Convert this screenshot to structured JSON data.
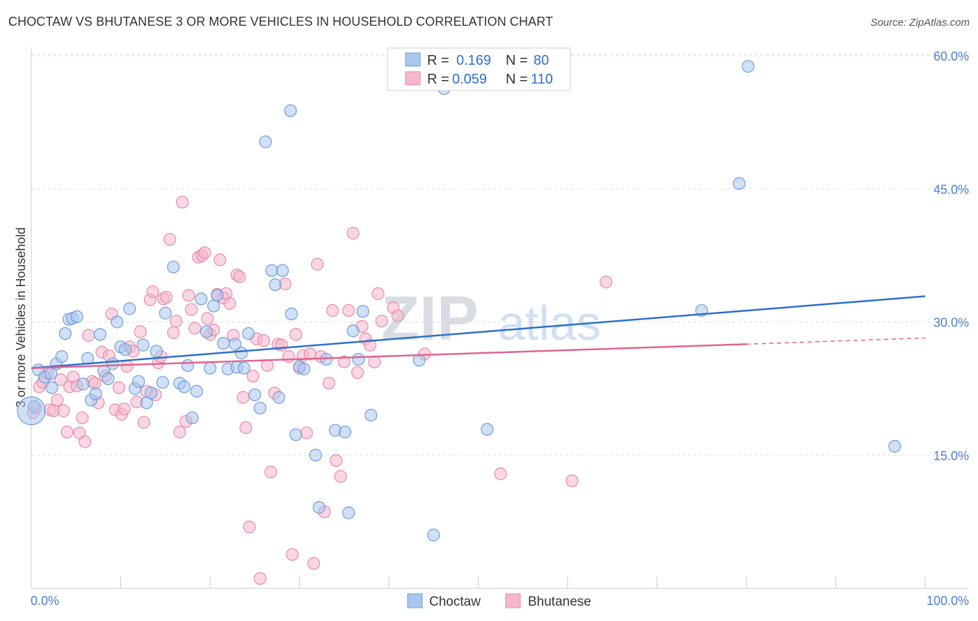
{
  "header": {
    "title": "CHOCTAW VS BHUTANESE 3 OR MORE VEHICLES IN HOUSEHOLD CORRELATION CHART",
    "source": "Source: ZipAtlas.com"
  },
  "watermark": {
    "part1": "ZIP",
    "part2": "atlas"
  },
  "legend": {
    "series": [
      {
        "r_label": "R = ",
        "r_value": "0.169",
        "n_label": "N = ",
        "n_value": "80"
      },
      {
        "r_label": "R = ",
        "r_value": "0.059",
        "n_label": "N = ",
        "n_value": "110"
      }
    ]
  },
  "bottom_legend": {
    "items": [
      "Choctaw",
      "Bhutanese"
    ]
  },
  "colors": {
    "choctaw_fill": "#a9c6ee",
    "choctaw_stroke": "#6f9ddb",
    "choctaw_line": "#2c6fcc",
    "bhutanese_fill": "#f6b7cc",
    "bhutanese_stroke": "#e98aa8",
    "bhutanese_line": "#e0648e",
    "tick_text": "#4a7fd1",
    "grid": "#dddddd"
  },
  "chart_data": {
    "type": "scatter",
    "title": "CHOCTAW VS BHUTANESE 3 OR MORE VEHICLES IN HOUSEHOLD CORRELATION CHART",
    "xlabel": "",
    "ylabel": "3 or more Vehicles in Household",
    "xlim": [
      0,
      100
    ],
    "ylim": [
      0,
      60
    ],
    "x_tick_labels": [
      "0.0%",
      "100.0%"
    ],
    "y_ticks": [
      15,
      30,
      45,
      60
    ],
    "y_tick_labels": [
      "15.0%",
      "30.0%",
      "45.0%",
      "60.0%"
    ],
    "grid": true,
    "legend_position": "top-center",
    "series": [
      {
        "name": "Choctaw",
        "R": 0.169,
        "N": 80,
        "trend": {
          "x": [
            0,
            100
          ],
          "y": [
            24.8,
            32.9
          ],
          "dashed_after": null
        },
        "points": [
          [
            0.3,
            20.5
          ],
          [
            0.8,
            24.6
          ],
          [
            1.5,
            23.8
          ],
          [
            2.2,
            24.2
          ],
          [
            2.3,
            22.6
          ],
          [
            2.8,
            25.3
          ],
          [
            3.4,
            26.1
          ],
          [
            3.8,
            28.7
          ],
          [
            4.2,
            30.3
          ],
          [
            4.6,
            30.4
          ],
          [
            5.1,
            30.6
          ],
          [
            5.8,
            23.0
          ],
          [
            6.3,
            25.9
          ],
          [
            6.7,
            21.2
          ],
          [
            7.2,
            21.9
          ],
          [
            7.7,
            28.6
          ],
          [
            8.1,
            24.5
          ],
          [
            8.6,
            23.6
          ],
          [
            9.1,
            25.3
          ],
          [
            9.6,
            30.0
          ],
          [
            10.0,
            27.2
          ],
          [
            10.5,
            26.9
          ],
          [
            11.0,
            31.5
          ],
          [
            11.6,
            22.5
          ],
          [
            12.0,
            23.3
          ],
          [
            12.5,
            27.4
          ],
          [
            12.9,
            20.9
          ],
          [
            13.4,
            22.0
          ],
          [
            14.0,
            26.7
          ],
          [
            14.7,
            23.2
          ],
          [
            15.0,
            31.0
          ],
          [
            15.9,
            36.2
          ],
          [
            16.6,
            23.1
          ],
          [
            17.1,
            22.7
          ],
          [
            17.5,
            25.1
          ],
          [
            18.0,
            19.2
          ],
          [
            18.5,
            22.2
          ],
          [
            19.0,
            32.6
          ],
          [
            19.6,
            28.9
          ],
          [
            20.0,
            24.8
          ],
          [
            20.4,
            31.8
          ],
          [
            20.8,
            33.0
          ],
          [
            21.5,
            27.6
          ],
          [
            22.0,
            24.7
          ],
          [
            22.8,
            27.5
          ],
          [
            23.0,
            24.9
          ],
          [
            23.5,
            26.5
          ],
          [
            23.8,
            24.8
          ],
          [
            24.3,
            28.7
          ],
          [
            25.0,
            21.8
          ],
          [
            25.6,
            20.3
          ],
          [
            26.2,
            50.3
          ],
          [
            26.9,
            35.8
          ],
          [
            27.3,
            34.2
          ],
          [
            27.7,
            21.5
          ],
          [
            28.1,
            35.8
          ],
          [
            29.0,
            53.8
          ],
          [
            29.1,
            30.9
          ],
          [
            29.6,
            17.3
          ],
          [
            30.0,
            25.0
          ],
          [
            30.5,
            24.7
          ],
          [
            31.8,
            15.0
          ],
          [
            32.2,
            9.1
          ],
          [
            33.0,
            25.8
          ],
          [
            34.0,
            17.8
          ],
          [
            35.1,
            17.6
          ],
          [
            35.5,
            8.5
          ],
          [
            36.0,
            29.0
          ],
          [
            36.6,
            25.8
          ],
          [
            37.1,
            31.2
          ],
          [
            38.0,
            19.5
          ],
          [
            43.4,
            25.7
          ],
          [
            45.0,
            6.0
          ],
          [
            46.2,
            56.3
          ],
          [
            51.0,
            17.9
          ],
          [
            75.0,
            31.3
          ],
          [
            79.2,
            45.6
          ],
          [
            80.2,
            58.8
          ],
          [
            96.6,
            16.0
          ],
          [
            0.0,
            20.0
          ]
        ]
      },
      {
        "name": "Bhutanese",
        "R": 0.059,
        "N": 110,
        "trend": {
          "x": [
            0,
            80,
            100
          ],
          "y": [
            24.8,
            27.5,
            28.2
          ],
          "dashed_after": 80
        },
        "points": [
          [
            0.2,
            19.8
          ],
          [
            0.5,
            20.3
          ],
          [
            0.9,
            22.7
          ],
          [
            1.3,
            23.2
          ],
          [
            1.8,
            24.2
          ],
          [
            2.1,
            20.1
          ],
          [
            2.5,
            20.0
          ],
          [
            2.9,
            21.2
          ],
          [
            3.3,
            23.5
          ],
          [
            3.6,
            20.0
          ],
          [
            4.0,
            17.6
          ],
          [
            4.3,
            22.7
          ],
          [
            4.7,
            23.8
          ],
          [
            5.1,
            22.8
          ],
          [
            5.4,
            17.5
          ],
          [
            5.7,
            19.2
          ],
          [
            6.0,
            16.5
          ],
          [
            6.4,
            28.5
          ],
          [
            6.8,
            23.3
          ],
          [
            7.1,
            23.1
          ],
          [
            7.5,
            20.9
          ],
          [
            7.9,
            26.6
          ],
          [
            8.3,
            23.9
          ],
          [
            8.7,
            26.2
          ],
          [
            9.0,
            30.9
          ],
          [
            9.4,
            20.1
          ],
          [
            9.8,
            22.6
          ],
          [
            10.1,
            19.6
          ],
          [
            10.4,
            20.2
          ],
          [
            10.7,
            25.0
          ],
          [
            11.0,
            27.2
          ],
          [
            11.4,
            26.7
          ],
          [
            11.8,
            21.0
          ],
          [
            12.2,
            28.9
          ],
          [
            12.6,
            18.7
          ],
          [
            12.9,
            22.2
          ],
          [
            13.3,
            32.5
          ],
          [
            13.6,
            33.4
          ],
          [
            13.9,
            21.8
          ],
          [
            14.2,
            25.4
          ],
          [
            14.5,
            26.1
          ],
          [
            14.8,
            32.6
          ],
          [
            15.1,
            32.8
          ],
          [
            15.5,
            39.3
          ],
          [
            15.9,
            28.8
          ],
          [
            16.2,
            30.1
          ],
          [
            16.6,
            17.6
          ],
          [
            16.9,
            43.5
          ],
          [
            17.3,
            18.8
          ],
          [
            17.6,
            33.0
          ],
          [
            17.9,
            31.4
          ],
          [
            18.3,
            29.3
          ],
          [
            18.7,
            37.3
          ],
          [
            19.1,
            37.5
          ],
          [
            19.4,
            37.8
          ],
          [
            19.7,
            30.4
          ],
          [
            20.0,
            28.6
          ],
          [
            20.4,
            29.1
          ],
          [
            20.8,
            33.1
          ],
          [
            21.1,
            37.0
          ],
          [
            21.5,
            32.7
          ],
          [
            21.8,
            33.2
          ],
          [
            22.2,
            32.1
          ],
          [
            22.6,
            28.5
          ],
          [
            23.0,
            35.3
          ],
          [
            23.3,
            35.1
          ],
          [
            23.7,
            21.5
          ],
          [
            24.0,
            18.1
          ],
          [
            24.4,
            6.9
          ],
          [
            24.8,
            23.9
          ],
          [
            25.2,
            28.1
          ],
          [
            25.6,
            1.1
          ],
          [
            26.0,
            27.9
          ],
          [
            26.4,
            25.1
          ],
          [
            26.8,
            13.1
          ],
          [
            27.2,
            22.0
          ],
          [
            27.6,
            27.5
          ],
          [
            28.0,
            27.4
          ],
          [
            28.4,
            34.3
          ],
          [
            28.8,
            26.1
          ],
          [
            29.2,
            3.8
          ],
          [
            29.6,
            28.6
          ],
          [
            30.0,
            24.8
          ],
          [
            30.4,
            26.2
          ],
          [
            30.8,
            17.5
          ],
          [
            31.2,
            26.4
          ],
          [
            31.6,
            2.8
          ],
          [
            32.0,
            36.5
          ],
          [
            32.4,
            26.1
          ],
          [
            32.8,
            8.6
          ],
          [
            33.3,
            23.1
          ],
          [
            33.7,
            31.3
          ],
          [
            34.1,
            14.4
          ],
          [
            34.6,
            12.6
          ],
          [
            35.0,
            25.5
          ],
          [
            35.5,
            31.3
          ],
          [
            36.0,
            40.0
          ],
          [
            36.5,
            24.3
          ],
          [
            37.0,
            29.5
          ],
          [
            37.4,
            28.1
          ],
          [
            37.9,
            27.4
          ],
          [
            38.4,
            25.5
          ],
          [
            38.8,
            33.2
          ],
          [
            39.2,
            30.1
          ],
          [
            40.5,
            31.6
          ],
          [
            41.0,
            30.7
          ],
          [
            44.0,
            26.4
          ],
          [
            52.5,
            12.9
          ],
          [
            60.5,
            12.1
          ],
          [
            64.3,
            34.5
          ]
        ]
      }
    ]
  }
}
